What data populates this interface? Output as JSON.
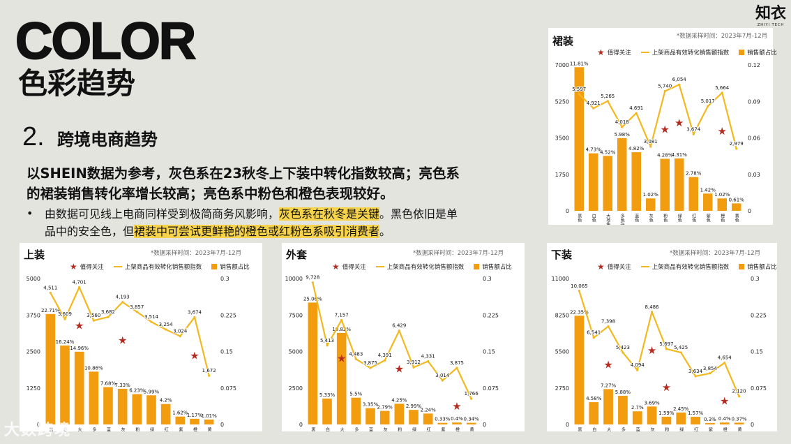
{
  "header": {
    "title_en": "COLOR",
    "title_zh": "色彩趋势"
  },
  "logo": {
    "zh": "知衣",
    "en": "ZHIYI TECH"
  },
  "section": {
    "number": "2.",
    "title": "跨境电商趋势"
  },
  "paragraph": "以SHEIN数据为参考，灰色系在23秋冬上下装中转化指数较高；亮色系的裙装销售转化率增长较高；亮色系中粉色和橙色表现较好。",
  "bullet": {
    "part1": "由数据可见线上电商同样受到极简商务风影响，",
    "hl1": "灰色系在秋冬是关键",
    "part2": "。黑色依旧是单品中的安全色，但",
    "hl2": "裙装中可尝试更鲜艳的橙色或红粉色系吸引消费者",
    "part3": "。"
  },
  "legend": {
    "star": "值得关注",
    "line": "上架商品有效转化销售额指数",
    "bar": "销售额占比"
  },
  "watermark": "大数跨境",
  "colors": {
    "bar": "#f29c0f",
    "line": "#f2b81f",
    "star": "#b52b20"
  },
  "chart_data": [
    {
      "id": "skirt",
      "type": "bar+line",
      "title": "裙装",
      "date_note": "*数据采样时间：2023年7月-12月",
      "categories": [
        "黑色",
        "白色",
        "大地色",
        "多色/拼色",
        "蓝色",
        "灰色",
        "粉色",
        "绿色",
        "红色",
        "紫色",
        "橙色",
        "黄色"
      ],
      "bar_series": {
        "name": "销售额占比",
        "values": [
          0.1181,
          0.0473,
          0.0452,
          0.0598,
          0.0482,
          0.0102,
          0.0428,
          0.0431,
          0.0278,
          0.0142,
          0.0102,
          0.0061
        ],
        "labels": [
          "11.81%",
          "4.73%",
          "4.52%",
          "5.98%",
          "4.82%",
          "1.02%",
          "4.28%",
          "4.31%",
          "2.78%",
          "1.42%",
          "1.02%",
          "0.61%"
        ]
      },
      "line_series": {
        "name": "上架商品有效转化销售额指数",
        "values": [
          5597,
          4921,
          5265,
          4018,
          4691,
          3081,
          5740,
          6054,
          3674,
          5017,
          5664,
          2979
        ],
        "labels": [
          "5,597",
          "4,921",
          "5,265",
          "4,018",
          "4,691",
          "3,081",
          "5,740",
          "6,054",
          "3,674",
          "5,017",
          "5,664",
          "2,979"
        ]
      },
      "stars": [
        6,
        7,
        10
      ],
      "y_left": {
        "range": [
          0,
          7000
        ],
        "ticks": [
          "0",
          "1750",
          "3500",
          "5250",
          "7000"
        ]
      },
      "y_right": {
        "range": [
          0,
          0.12
        ],
        "ticks": [
          "0",
          "0.03",
          "0.06",
          "0.09",
          "0.12"
        ]
      }
    },
    {
      "id": "tops",
      "type": "bar+line",
      "title": "上装",
      "date_note": "*数据采样时间：2023年7月-12月",
      "categories": [
        "黑色",
        "白色",
        "大地色",
        "多色/拼色",
        "蓝色",
        "灰色",
        "粉色",
        "绿色",
        "红色",
        "紫色",
        "橙色",
        "黄色"
      ],
      "bar_series": {
        "name": "销售额占比",
        "values": [
          0.2271,
          0.1624,
          0.1496,
          0.1086,
          0.0768,
          0.0733,
          0.0623,
          0.0599,
          0.042,
          0.0162,
          0.0117,
          0.0101
        ],
        "labels": [
          "22.71%",
          "16.24%",
          "14.96%",
          "10.86%",
          "7.68%",
          "7.33%",
          "6.23%",
          "5.99%",
          "4.2%",
          "1.62%",
          "1.17%",
          "1.01%"
        ]
      },
      "line_series": {
        "name": "上架商品有效转化销售额指数",
        "values": [
          4511,
          3609,
          4701,
          3560,
          3682,
          4193,
          3857,
          3514,
          3254,
          3024,
          3674,
          1672
        ],
        "labels": [
          "4,511",
          "3,609",
          "4,701",
          "3,560",
          "3,682",
          "4,193",
          "3,857",
          "3,514",
          "3,254",
          "3,024",
          "3,674",
          "1,672"
        ]
      },
      "stars": [
        2,
        5,
        10
      ],
      "y_left": {
        "range": [
          0,
          5000
        ],
        "ticks": [
          "0",
          "1250",
          "2500",
          "3750",
          "5000"
        ]
      },
      "y_right": {
        "range": [
          0,
          0.3
        ],
        "ticks": [
          "0",
          "0.075",
          "0.15",
          "0.225",
          "0.3"
        ]
      }
    },
    {
      "id": "outerwear",
      "type": "bar+line",
      "title": "外套",
      "date_note": "*数据采样时间：2023年7月-12月",
      "categories": [
        "黑色",
        "白色",
        "大地色",
        "多色/拼色",
        "蓝色",
        "灰色",
        "粉色",
        "绿色",
        "红色",
        "紫色",
        "橙色",
        "黄色"
      ],
      "bar_series": {
        "name": "销售额占比",
        "values": [
          0.2506,
          0.0533,
          0.1882,
          0.055,
          0.0335,
          0.0279,
          0.0425,
          0.0299,
          0.0224,
          0.0033,
          0.004,
          0.0034
        ],
        "labels": [
          "25.06%",
          "5.33%",
          "18.82%",
          "5.5%",
          "3.35%",
          "2.79%",
          "4.25%",
          "2.99%",
          "2.24%",
          "0.33%",
          "0.4%",
          "0.34%"
        ]
      },
      "line_series": {
        "name": "上架商品有效转化销售额指数",
        "values": [
          9728,
          5413,
          7157,
          4483,
          3875,
          4391,
          6429,
          3912,
          4331,
          3014,
          3875,
          1766
        ],
        "labels": [
          "9,728",
          "5,413",
          "7,157",
          "4,483",
          "3,875",
          "4,391",
          "6,429",
          "3,912",
          "4,331",
          "3,014",
          "3,875",
          "1,766"
        ]
      },
      "stars": [
        2,
        6,
        10
      ],
      "y_left": {
        "range": [
          0,
          10000
        ],
        "ticks": [
          "0",
          "2500",
          "5000",
          "7500",
          "10000"
        ]
      },
      "y_right": {
        "range": [
          0,
          0.3
        ],
        "ticks": [
          "0",
          "0.075",
          "0.15",
          "0.225",
          "0.3"
        ]
      }
    },
    {
      "id": "bottoms",
      "type": "bar+line",
      "title": "下装",
      "date_note": "*数据采样时间：2023年7月-12月",
      "categories": [
        "黑色",
        "白色",
        "大地色",
        "多色/拼色",
        "蓝色",
        "灰色",
        "粉色",
        "绿色",
        "红色",
        "紫色",
        "橙色",
        "黄色"
      ],
      "bar_series": {
        "name": "销售额占比",
        "values": [
          0.2235,
          0.0458,
          0.0727,
          0.0588,
          0.027,
          0.0369,
          0.0159,
          0.0245,
          0.0157,
          0.003,
          0.004,
          0.0037
        ],
        "labels": [
          "22.35%",
          "4.58%",
          "7.27%",
          "5.88%",
          "2.7%",
          "3.69%",
          "1.59%",
          "2.45%",
          "1.57%",
          "0.3%",
          "0.4%",
          "0.37%"
        ]
      },
      "line_series": {
        "name": "上架商品有效转化销售额指数",
        "values": [
          10065,
          6541,
          7398,
          5423,
          4094,
          8486,
          5697,
          5425,
          3634,
          3854,
          4654,
          2120
        ],
        "labels": [
          "10,065",
          "6,541",
          "7,398",
          "5,423",
          "4,094",
          "8,486",
          "5,697",
          "5,425",
          "3,634",
          "3,854",
          "4,654",
          "2,120"
        ]
      },
      "stars": [
        2,
        5,
        6,
        10
      ],
      "y_left": {
        "range": [
          0,
          11000
        ],
        "ticks": [
          "0",
          "2750",
          "5500",
          "8250",
          "11000"
        ]
      },
      "y_right": {
        "range": [
          0,
          0.3
        ],
        "ticks": [
          "0",
          "0.075",
          "0.15",
          "0.225",
          "0.3"
        ]
      }
    }
  ]
}
